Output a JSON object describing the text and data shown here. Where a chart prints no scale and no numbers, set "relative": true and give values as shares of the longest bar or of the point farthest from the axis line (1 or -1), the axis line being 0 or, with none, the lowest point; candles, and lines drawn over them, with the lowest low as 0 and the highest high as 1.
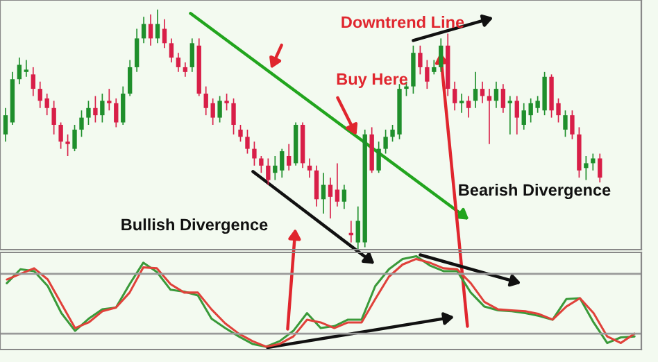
{
  "chart_data": [
    {
      "type": "candlestick",
      "relative": true,
      "categories": [
        null,
        null,
        null,
        null,
        null,
        null,
        null,
        null,
        null,
        null,
        null,
        null,
        null,
        null,
        null,
        null,
        null,
        null,
        null,
        null,
        null,
        null,
        null,
        null,
        null,
        null,
        null,
        null,
        null,
        null,
        null,
        null,
        null,
        null,
        null,
        null,
        null,
        null,
        null,
        null,
        null,
        null,
        null,
        null,
        null,
        null,
        null,
        null,
        null,
        null,
        null,
        null,
        null,
        null,
        null,
        null,
        null,
        null,
        null,
        null,
        null,
        null,
        null,
        null,
        null,
        null,
        null,
        null,
        null,
        null,
        null,
        null,
        null,
        null,
        null,
        null,
        null,
        null,
        null,
        null,
        null,
        null,
        null,
        null,
        null,
        null,
        null
      ],
      "ohlc": [
        [
          0.48,
          0.59,
          0.45,
          0.56
        ],
        [
          0.53,
          0.74,
          0.52,
          0.71
        ],
        [
          0.71,
          0.8,
          0.69,
          0.77
        ],
        [
          0.74,
          0.79,
          0.72,
          0.75
        ],
        [
          0.73,
          0.76,
          0.64,
          0.67
        ],
        [
          0.67,
          0.7,
          0.59,
          0.62
        ],
        [
          0.63,
          0.65,
          0.56,
          0.59
        ],
        [
          0.59,
          0.62,
          0.48,
          0.52
        ],
        [
          0.52,
          0.53,
          0.42,
          0.45
        ],
        [
          0.45,
          0.48,
          0.39,
          0.44
        ],
        [
          0.42,
          0.52,
          0.41,
          0.5
        ],
        [
          0.5,
          0.58,
          0.47,
          0.55
        ],
        [
          0.55,
          0.62,
          0.52,
          0.59
        ],
        [
          0.59,
          0.64,
          0.53,
          0.56
        ],
        [
          0.56,
          0.65,
          0.53,
          0.62
        ],
        [
          0.62,
          0.67,
          0.58,
          0.61
        ],
        [
          0.61,
          0.63,
          0.51,
          0.53
        ],
        [
          0.53,
          0.68,
          0.52,
          0.65
        ],
        [
          0.65,
          0.79,
          0.64,
          0.76
        ],
        [
          0.76,
          0.92,
          0.74,
          0.88
        ],
        [
          0.88,
          0.97,
          0.86,
          0.94
        ],
        [
          0.94,
          0.98,
          0.85,
          0.88
        ],
        [
          0.88,
          1.0,
          0.86,
          0.94
        ],
        [
          0.92,
          0.96,
          0.84,
          0.86
        ],
        [
          0.86,
          0.88,
          0.78,
          0.8
        ],
        [
          0.8,
          0.82,
          0.74,
          0.76
        ],
        [
          0.76,
          0.78,
          0.72,
          0.74
        ],
        [
          0.76,
          0.88,
          0.74,
          0.86
        ],
        [
          0.85,
          0.88,
          0.64,
          0.65
        ],
        [
          0.65,
          0.68,
          0.56,
          0.59
        ],
        [
          0.61,
          0.63,
          0.52,
          0.55
        ],
        [
          0.55,
          0.64,
          0.53,
          0.62
        ],
        [
          0.62,
          0.65,
          0.58,
          0.61
        ],
        [
          0.61,
          0.63,
          0.48,
          0.52
        ],
        [
          0.5,
          0.52,
          0.45,
          0.47
        ],
        [
          0.47,
          0.5,
          0.4,
          0.42
        ],
        [
          0.42,
          0.45,
          0.35,
          0.38
        ],
        [
          0.38,
          0.39,
          0.32,
          0.35
        ],
        [
          0.35,
          0.38,
          0.27,
          0.29
        ],
        [
          0.32,
          0.39,
          0.29,
          0.35
        ],
        [
          0.33,
          0.42,
          0.3,
          0.41
        ],
        [
          0.39,
          0.44,
          0.33,
          0.35
        ],
        [
          0.36,
          0.53,
          0.35,
          0.52
        ],
        [
          0.52,
          0.53,
          0.34,
          0.36
        ],
        [
          0.35,
          0.38,
          0.3,
          0.33
        ],
        [
          0.33,
          0.35,
          0.18,
          0.21
        ],
        [
          0.21,
          0.32,
          0.15,
          0.27
        ],
        [
          0.27,
          0.3,
          0.13,
          0.22
        ],
        [
          0.25,
          0.36,
          0.18,
          0.2
        ],
        [
          0.2,
          0.27,
          0.17,
          0.25
        ],
        [
          0.07,
          0.12,
          0.03,
          0.06
        ],
        [
          0.03,
          0.18,
          0.0,
          0.12
        ],
        [
          0.03,
          0.5,
          0.01,
          0.48
        ],
        [
          0.48,
          0.51,
          0.32,
          0.33
        ],
        [
          0.33,
          0.45,
          0.32,
          0.42
        ],
        [
          0.42,
          0.5,
          0.4,
          0.47
        ],
        [
          0.47,
          0.52,
          0.45,
          0.5
        ],
        [
          0.48,
          0.69,
          0.46,
          0.67
        ],
        [
          0.67,
          0.7,
          0.64,
          0.68
        ],
        [
          0.68,
          0.85,
          0.65,
          0.82
        ],
        [
          0.82,
          0.85,
          0.73,
          0.76
        ],
        [
          0.76,
          0.79,
          0.67,
          0.7
        ],
        [
          0.74,
          0.79,
          0.73,
          0.76
        ],
        [
          0.76,
          0.88,
          0.74,
          0.85
        ],
        [
          0.85,
          0.9,
          0.64,
          0.67
        ],
        [
          0.67,
          0.7,
          0.58,
          0.61
        ],
        [
          0.61,
          0.65,
          0.57,
          0.62
        ],
        [
          0.62,
          0.64,
          0.55,
          0.59
        ],
        [
          0.62,
          0.74,
          0.59,
          0.67
        ],
        [
          0.67,
          0.7,
          0.61,
          0.64
        ],
        [
          0.64,
          0.67,
          0.44,
          0.62
        ],
        [
          0.62,
          0.7,
          0.59,
          0.67
        ],
        [
          0.67,
          0.69,
          0.57,
          0.59
        ],
        [
          0.61,
          0.64,
          0.48,
          0.62
        ],
        [
          0.62,
          0.64,
          0.48,
          0.55
        ],
        [
          0.52,
          0.61,
          0.5,
          0.58
        ],
        [
          0.56,
          0.63,
          0.53,
          0.61
        ],
        [
          0.59,
          0.64,
          0.57,
          0.62
        ],
        [
          0.58,
          0.74,
          0.56,
          0.72
        ],
        [
          0.72,
          0.73,
          0.55,
          0.58
        ],
        [
          0.61,
          0.63,
          0.53,
          0.56
        ],
        [
          0.5,
          0.58,
          0.47,
          0.56
        ],
        [
          0.56,
          0.58,
          0.46,
          0.48
        ],
        [
          0.48,
          0.51,
          0.3,
          0.33
        ],
        [
          0.34,
          0.39,
          0.29,
          0.36
        ],
        [
          0.36,
          0.4,
          0.33,
          0.38
        ],
        [
          0.38,
          0.4,
          0.28,
          0.3
        ]
      ],
      "annotations": [
        "Downtrend Line",
        "Buy Here",
        "Bearish Divergence",
        "Bullish Divergence"
      ]
    },
    {
      "type": "line",
      "relative": true,
      "marker": "none",
      "line_style": "solid",
      "categories": [
        null,
        null,
        null,
        null,
        null,
        null,
        null,
        null,
        null,
        null,
        null,
        null,
        null,
        null,
        null,
        null,
        null,
        null,
        null,
        null,
        null,
        null,
        null,
        null,
        null,
        null,
        null,
        null,
        null,
        null,
        null,
        null,
        null,
        null,
        null,
        null,
        null,
        null,
        null,
        null,
        null,
        null,
        null,
        null,
        null,
        null,
        null
      ],
      "series": [
        {
          "color": "#3a9a3a",
          "values": [
            0.71,
            0.86,
            0.84,
            0.68,
            0.39,
            0.2,
            0.33,
            0.43,
            0.45,
            0.7,
            0.93,
            0.83,
            0.64,
            0.62,
            0.58,
            0.33,
            0.23,
            0.14,
            0.06,
            0.03,
            0.09,
            0.2,
            0.39,
            0.23,
            0.25,
            0.32,
            0.32,
            0.68,
            0.86,
            0.97,
            1.0,
            0.9,
            0.84,
            0.84,
            0.61,
            0.46,
            0.42,
            0.41,
            0.39,
            0.36,
            0.32,
            0.54,
            0.55,
            0.29,
            0.07,
            0.13,
            0.14
          ]
        },
        {
          "color": "#e0413a",
          "values": [
            0.75,
            0.81,
            0.87,
            0.75,
            0.49,
            0.23,
            0.29,
            0.41,
            0.45,
            0.61,
            0.88,
            0.87,
            0.7,
            0.61,
            0.61,
            0.43,
            0.28,
            0.17,
            0.09,
            0.03,
            0.06,
            0.14,
            0.32,
            0.29,
            0.23,
            0.29,
            0.29,
            0.54,
            0.78,
            0.91,
            0.97,
            0.93,
            0.87,
            0.86,
            0.71,
            0.51,
            0.43,
            0.42,
            0.41,
            0.38,
            0.32,
            0.46,
            0.55,
            0.39,
            0.14,
            0.07,
            0.17
          ]
        }
      ],
      "ref_lines": [
        {
          "axis": "y",
          "value": 0.81,
          "color": "#999999"
        },
        {
          "axis": "y",
          "value": 0.17,
          "color": "#999999"
        }
      ]
    }
  ]
}
